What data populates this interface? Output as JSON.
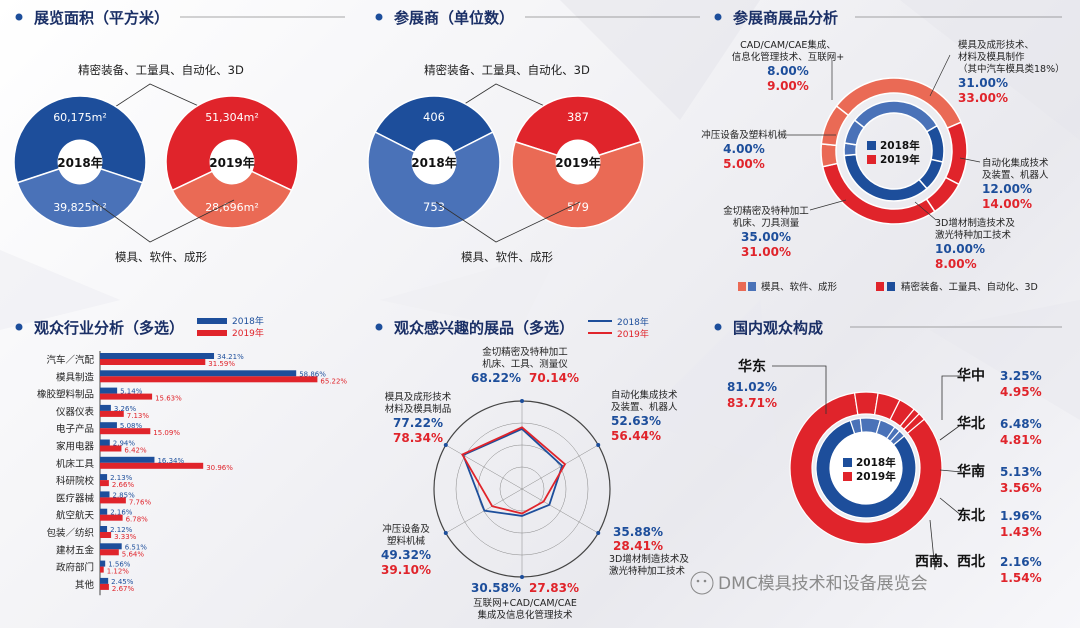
{
  "colors": {
    "navy": "#1d4e9b",
    "midblue": "#4a72b8",
    "red": "#e0242b",
    "salmon": "#ea6a55",
    "title": "#1a2f66",
    "dark": "#222222",
    "gridgray": "#555555"
  },
  "panels": {
    "area": {
      "title": "展览面积（平方米）",
      "top_label": "精密装备、工量具、自动化、3D",
      "bottom_label": "模具、软件、成形"
    },
    "exhibitors": {
      "title": "参展商（单位数）",
      "top_label": "精密装备、工量具、自动化、3D",
      "bottom_label": "模具、软件、成形"
    },
    "products": {
      "title": "参展商展品分析"
    },
    "industry": {
      "title": "观众行业分析（多选）"
    },
    "interest": {
      "title": "观众感兴趣的展品（多选）"
    },
    "regional": {
      "title": "国内观众构成"
    }
  },
  "legend": {
    "y2018": "2018年",
    "y2019": "2019年",
    "legend_mold": "模具、软件、成形",
    "legend_precision": "精密装备、工量具、自动化、3D"
  },
  "watermark": "DMC模具技术和设备展览会",
  "chart_data": [
    {
      "id": "area",
      "type": "pie",
      "title": "展览面积（平方米）",
      "pies": [
        {
          "center": "2018年",
          "slices": [
            {
              "label": "60,175m²",
              "value": 60175,
              "color": "#1d4e9b"
            },
            {
              "label": "39,825m²",
              "value": 39825,
              "color": "#4a72b8"
            }
          ]
        },
        {
          "center": "2019年",
          "slices": [
            {
              "label": "51,304m²",
              "value": 51304,
              "color": "#e0242b"
            },
            {
              "label": "28,696m²",
              "value": 28696,
              "color": "#ea6a55"
            }
          ]
        }
      ]
    },
    {
      "id": "exhibitors",
      "type": "pie",
      "title": "参展商（单位数）",
      "pies": [
        {
          "center": "2018年",
          "slices": [
            {
              "label": "406",
              "value": 406,
              "color": "#1d4e9b"
            },
            {
              "label": "753",
              "value": 753,
              "color": "#4a72b8"
            }
          ]
        },
        {
          "center": "2019年",
          "slices": [
            {
              "label": "387",
              "value": 387,
              "color": "#e0242b"
            },
            {
              "label": "579",
              "value": 579,
              "color": "#ea6a55"
            }
          ]
        }
      ]
    },
    {
      "id": "products",
      "type": "pie",
      "title": "参展商展品分析",
      "center_2018": "2018年",
      "center_2019": "2019年",
      "categories": [
        {
          "lines": [
            "模具及成形技术、",
            "材料及模具制作",
            "（其中汽车模具类18%）"
          ],
          "v2018": "31.00%",
          "v2019": "33.00%",
          "n2018": 31,
          "n2019": 33,
          "group": "mold"
        },
        {
          "lines": [
            "自动化集成技术",
            "及装置、机器人"
          ],
          "v2018": "12.00%",
          "v2019": "14.00%",
          "n2018": 12,
          "n2019": 14,
          "group": "precision"
        },
        {
          "lines": [
            "3D增材制造技术及",
            "激光特种加工技术"
          ],
          "v2018": "10.00%",
          "v2019": "8.00%",
          "n2018": 10,
          "n2019": 8,
          "group": "precision"
        },
        {
          "lines": [
            "金切精密及特种加工",
            "机床、刀具测量"
          ],
          "v2018": "35.00%",
          "v2019": "31.00%",
          "n2018": 35,
          "n2019": 31,
          "group": "precision"
        },
        {
          "lines": [
            "冲压设备及塑料机械"
          ],
          "v2018": "4.00%",
          "v2019": "5.00%",
          "n2018": 4,
          "n2019": 5,
          "group": "mold"
        },
        {
          "lines": [
            "CAD/CAM/CAE集成、",
            "信息化管理技术、互联网+"
          ],
          "v2018": "8.00%",
          "v2019": "9.00%",
          "n2018": 8,
          "n2019": 9,
          "group": "mold"
        }
      ]
    },
    {
      "id": "industry",
      "type": "bar",
      "title": "观众行业分析（多选）",
      "categories": [
        "汽车／汽配",
        "模具制造",
        "橡胶塑料制品",
        "仪器仪表",
        "电子产品",
        "家用电器",
        "机床工具",
        "科研院校",
        "医疗器械",
        "航空航天",
        "包装／纺织",
        "建材五金",
        "政府部门",
        "其他"
      ],
      "series": [
        {
          "name": "2018年",
          "values": [
            34.21,
            58.86,
            5.14,
            3.26,
            5.08,
            2.94,
            16.34,
            2.13,
            2.85,
            2.16,
            2.12,
            6.51,
            1.56,
            2.45
          ],
          "labels": [
            "34.21%",
            "58.86%",
            "5.14%",
            "3.26%",
            "5.08%",
            "2.94%",
            "16.34%",
            "2.13%",
            "2.85%",
            "2.16%",
            "2.12%",
            "6.51%",
            "1.56%",
            "2.45%"
          ]
        },
        {
          "name": "2019年",
          "values": [
            31.59,
            65.22,
            15.63,
            7.13,
            15.09,
            6.42,
            30.96,
            2.66,
            7.76,
            6.78,
            3.33,
            5.64,
            1.12,
            2.67
          ],
          "labels": [
            "31.59%",
            "65.22%",
            "15.63%",
            "7.13%",
            "15.09%",
            "6.42%",
            "30.96%",
            "2.66%",
            "7.76%",
            "6.78%",
            "3.33%",
            "5.64%",
            "1.12%",
            "2.67%"
          ]
        }
      ]
    },
    {
      "id": "interest",
      "type": "radar",
      "title": "观众感兴趣的展品（多选）",
      "axes": [
        {
          "lines": [
            "金切精密及特种加工",
            "机床、工具、测量仪"
          ],
          "v2018": "68.22%",
          "v2019": "70.14%",
          "n2018": 68.22,
          "n2019": 70.14
        },
        {
          "lines": [
            "自动化集成技术",
            "及装置、机器人"
          ],
          "v2018": "52.63%",
          "v2019": "56.44%",
          "n2018": 52.63,
          "n2019": 56.44
        },
        {
          "lines": [
            "3D增材制造技术及",
            "激光特种加工技术"
          ],
          "v2018": "35.88%",
          "v2019": "28.41%",
          "n2018": 35.88,
          "n2019": 28.41
        },
        {
          "lines": [
            "互联网+CAD/CAM/CAE",
            "集成及信息化管理技术"
          ],
          "v2018": "30.58%",
          "v2019": "27.83%",
          "n2018": 30.58,
          "n2019": 27.83
        },
        {
          "lines": [
            "冲压设备及",
            "塑料机械"
          ],
          "v2018": "49.32%",
          "v2019": "39.10%",
          "n2018": 49.32,
          "n2019": 39.1
        },
        {
          "lines": [
            "模具及成形技术",
            "材料及模具制品"
          ],
          "v2018": "77.22%",
          "v2019": "78.34%",
          "n2018": 77.22,
          "n2019": 78.34
        }
      ]
    },
    {
      "id": "regional",
      "type": "pie",
      "title": "国内观众构成",
      "center_2018": "2018年",
      "center_2019": "2019年",
      "regions": [
        {
          "name": "华东",
          "v2018": "81.02%",
          "v2019": "83.71%",
          "n2018": 81.02,
          "n2019": 83.71
        },
        {
          "name": "华中",
          "v2018": "3.25%",
          "v2019": "4.95%",
          "n2018": 3.25,
          "n2019": 4.95
        },
        {
          "name": "华北",
          "v2018": "6.48%",
          "v2019": "4.81%",
          "n2018": 6.48,
          "n2019": 4.81
        },
        {
          "name": "华南",
          "v2018": "5.13%",
          "v2019": "3.56%",
          "n2018": 5.13,
          "n2019": 3.56
        },
        {
          "name": "东北",
          "v2018": "1.96%",
          "v2019": "1.43%",
          "n2018": 1.96,
          "n2019": 1.43
        },
        {
          "name": "西南、西北",
          "v2018": "2.16%",
          "v2019": "1.54%",
          "n2018": 2.16,
          "n2019": 1.54
        }
      ]
    }
  ]
}
